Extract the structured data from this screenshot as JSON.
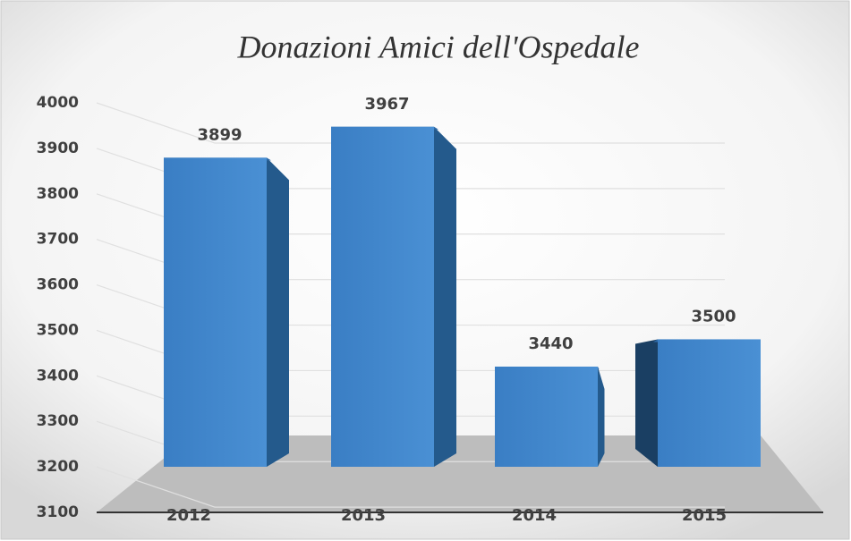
{
  "chart_data": {
    "type": "bar3d",
    "title": "Donazioni Amici dell'Ospedale",
    "categories": [
      "2012",
      "2013",
      "2014",
      "2015"
    ],
    "values": [
      3899,
      3967,
      3440,
      3500
    ],
    "color": "#3a80c8",
    "ylim": [
      3100,
      4000
    ],
    "yticks": [
      3100,
      3200,
      3300,
      3400,
      3500,
      3600,
      3700,
      3800,
      3900,
      4000
    ],
    "grid": true
  }
}
